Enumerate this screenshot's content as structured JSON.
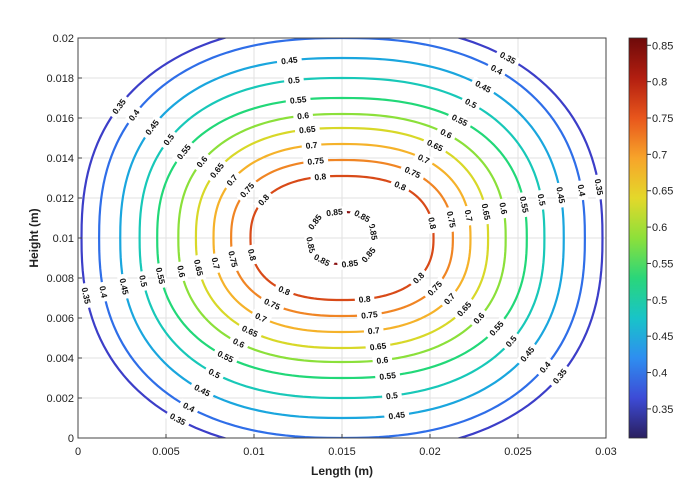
{
  "chart_data": {
    "type": "contour",
    "title": "",
    "xlabel": "Length (m)",
    "ylabel": "Height (m)",
    "xlim": [
      0,
      0.03
    ],
    "ylim": [
      0,
      0.02
    ],
    "x_ticks": [
      "0",
      "0.005",
      "0.01",
      "0.015",
      "0.02",
      "0.025",
      "0.03"
    ],
    "y_ticks": [
      "0",
      "0.002",
      "0.004",
      "0.006",
      "0.008",
      "0.01",
      "0.012",
      "0.014",
      "0.016",
      "0.018",
      "0.02"
    ],
    "grid": true,
    "field": {
      "center": [
        0.015,
        0.01
      ],
      "max_value": 0.86,
      "contours": [
        {
          "level": 0.35,
          "label": "0.35",
          "rx": 0.0148,
          "ry": 0.0107,
          "color": "#3c3ec8"
        },
        {
          "level": 0.4,
          "label": "0.4",
          "rx": 0.0138,
          "ry": 0.01,
          "color": "#2f6ee8"
        },
        {
          "level": 0.45,
          "label": "0.45",
          "rx": 0.0126,
          "ry": 0.009,
          "color": "#1aa6de"
        },
        {
          "level": 0.5,
          "label": "0.5",
          "rx": 0.0115,
          "ry": 0.008,
          "color": "#18c8b8"
        },
        {
          "level": 0.55,
          "label": "0.55",
          "rx": 0.0105,
          "ry": 0.007,
          "color": "#22d878"
        },
        {
          "level": 0.6,
          "label": "0.6",
          "rx": 0.0093,
          "ry": 0.0062,
          "color": "#8be03a"
        },
        {
          "level": 0.65,
          "label": "0.65",
          "rx": 0.0083,
          "ry": 0.0055,
          "color": "#d8d828"
        },
        {
          "level": 0.7,
          "label": "0.7",
          "rx": 0.0073,
          "ry": 0.0047,
          "color": "#f5b22a"
        },
        {
          "level": 0.75,
          "label": "0.75",
          "rx": 0.0063,
          "ry": 0.0039,
          "color": "#f08524"
        },
        {
          "level": 0.8,
          "label": "0.8",
          "rx": 0.0052,
          "ry": 0.0031,
          "color": "#d84a18"
        },
        {
          "level": 0.85,
          "label": "0.85",
          "rx": 0.0018,
          "ry": 0.0013,
          "color": "#8a1010"
        }
      ]
    },
    "colorbar": {
      "range": [
        0.31,
        0.86
      ],
      "ticks": [
        "0.35",
        "0.4",
        "0.45",
        "0.5",
        "0.55",
        "0.6",
        "0.65",
        "0.7",
        "0.75",
        "0.8",
        "0.85"
      ],
      "colormap": [
        "#2a1f5e",
        "#3d4bd6",
        "#2e8ef0",
        "#18c4c8",
        "#2ad67a",
        "#8de03a",
        "#e4d82a",
        "#f7a42a",
        "#e8561c",
        "#b21e10",
        "#6e0a0a"
      ]
    }
  }
}
